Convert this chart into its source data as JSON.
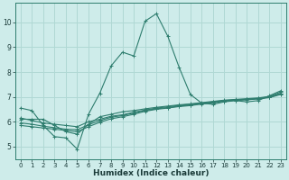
{
  "xlabel": "Humidex (Indice chaleur)",
  "ylabel": "",
  "background_color": "#ceecea",
  "grid_color": "#b0d8d4",
  "line_color": "#2e7d6e",
  "xlim": [
    -0.5,
    23.5
  ],
  "ylim": [
    4.5,
    10.8
  ],
  "xticks": [
    0,
    1,
    2,
    3,
    4,
    5,
    6,
    7,
    8,
    9,
    10,
    11,
    12,
    13,
    14,
    15,
    16,
    17,
    18,
    19,
    20,
    21,
    22,
    23
  ],
  "yticks": [
    5,
    6,
    7,
    8,
    9,
    10
  ],
  "lines": [
    {
      "x": [
        0,
        1,
        2,
        3,
        4,
        5,
        6,
        7,
        8,
        9,
        10,
        11,
        12,
        13,
        14,
        15,
        16,
        17,
        18,
        19,
        20,
        21,
        22,
        23
      ],
      "y": [
        6.55,
        6.45,
        5.85,
        5.4,
        5.35,
        4.9,
        6.3,
        7.15,
        8.25,
        8.8,
        8.65,
        10.05,
        10.35,
        9.45,
        8.2,
        7.1,
        6.75,
        6.7,
        6.8,
        6.85,
        6.8,
        6.85,
        7.05,
        7.25
      ],
      "marker": "+"
    },
    {
      "x": [
        0,
        1,
        2,
        3,
        4,
        5,
        6,
        7,
        8,
        9,
        10,
        11,
        12,
        13,
        14,
        15,
        16,
        17,
        18,
        19,
        20,
        21,
        22,
        23
      ],
      "y": [
        6.1,
        6.1,
        6.1,
        5.85,
        5.6,
        5.5,
        5.9,
        6.2,
        6.3,
        6.4,
        6.45,
        6.52,
        6.58,
        6.63,
        6.68,
        6.72,
        6.77,
        6.82,
        6.87,
        6.9,
        6.93,
        6.96,
        7.02,
        7.2
      ],
      "marker": "+"
    },
    {
      "x": [
        0,
        1,
        2,
        3,
        4,
        5,
        6,
        7,
        8,
        9,
        10,
        11,
        12,
        13,
        14,
        15,
        16,
        17,
        18,
        19,
        20,
        21,
        22,
        23
      ],
      "y": [
        6.15,
        6.05,
        5.95,
        5.9,
        5.85,
        5.8,
        6.0,
        6.1,
        6.22,
        6.28,
        6.38,
        6.47,
        6.55,
        6.6,
        6.66,
        6.7,
        6.75,
        6.8,
        6.85,
        6.88,
        6.9,
        6.94,
        7.0,
        7.15
      ],
      "marker": "+"
    },
    {
      "x": [
        0,
        1,
        2,
        3,
        4,
        5,
        6,
        7,
        8,
        9,
        10,
        11,
        12,
        13,
        14,
        15,
        16,
        17,
        18,
        19,
        20,
        21,
        22,
        23
      ],
      "y": [
        5.95,
        5.9,
        5.82,
        5.76,
        5.7,
        5.68,
        5.88,
        6.05,
        6.18,
        6.25,
        6.35,
        6.45,
        6.52,
        6.57,
        6.63,
        6.67,
        6.73,
        6.78,
        6.84,
        6.87,
        6.9,
        6.93,
        6.99,
        7.12
      ],
      "marker": "+"
    },
    {
      "x": [
        0,
        1,
        2,
        3,
        4,
        5,
        6,
        7,
        8,
        9,
        10,
        11,
        12,
        13,
        14,
        15,
        16,
        17,
        18,
        19,
        20,
        21,
        22,
        23
      ],
      "y": [
        5.85,
        5.8,
        5.75,
        5.7,
        5.65,
        5.6,
        5.8,
        5.98,
        6.12,
        6.2,
        6.3,
        6.42,
        6.5,
        6.55,
        6.61,
        6.65,
        6.71,
        6.76,
        6.82,
        6.86,
        6.88,
        6.92,
        6.97,
        7.1
      ],
      "marker": "+"
    }
  ]
}
